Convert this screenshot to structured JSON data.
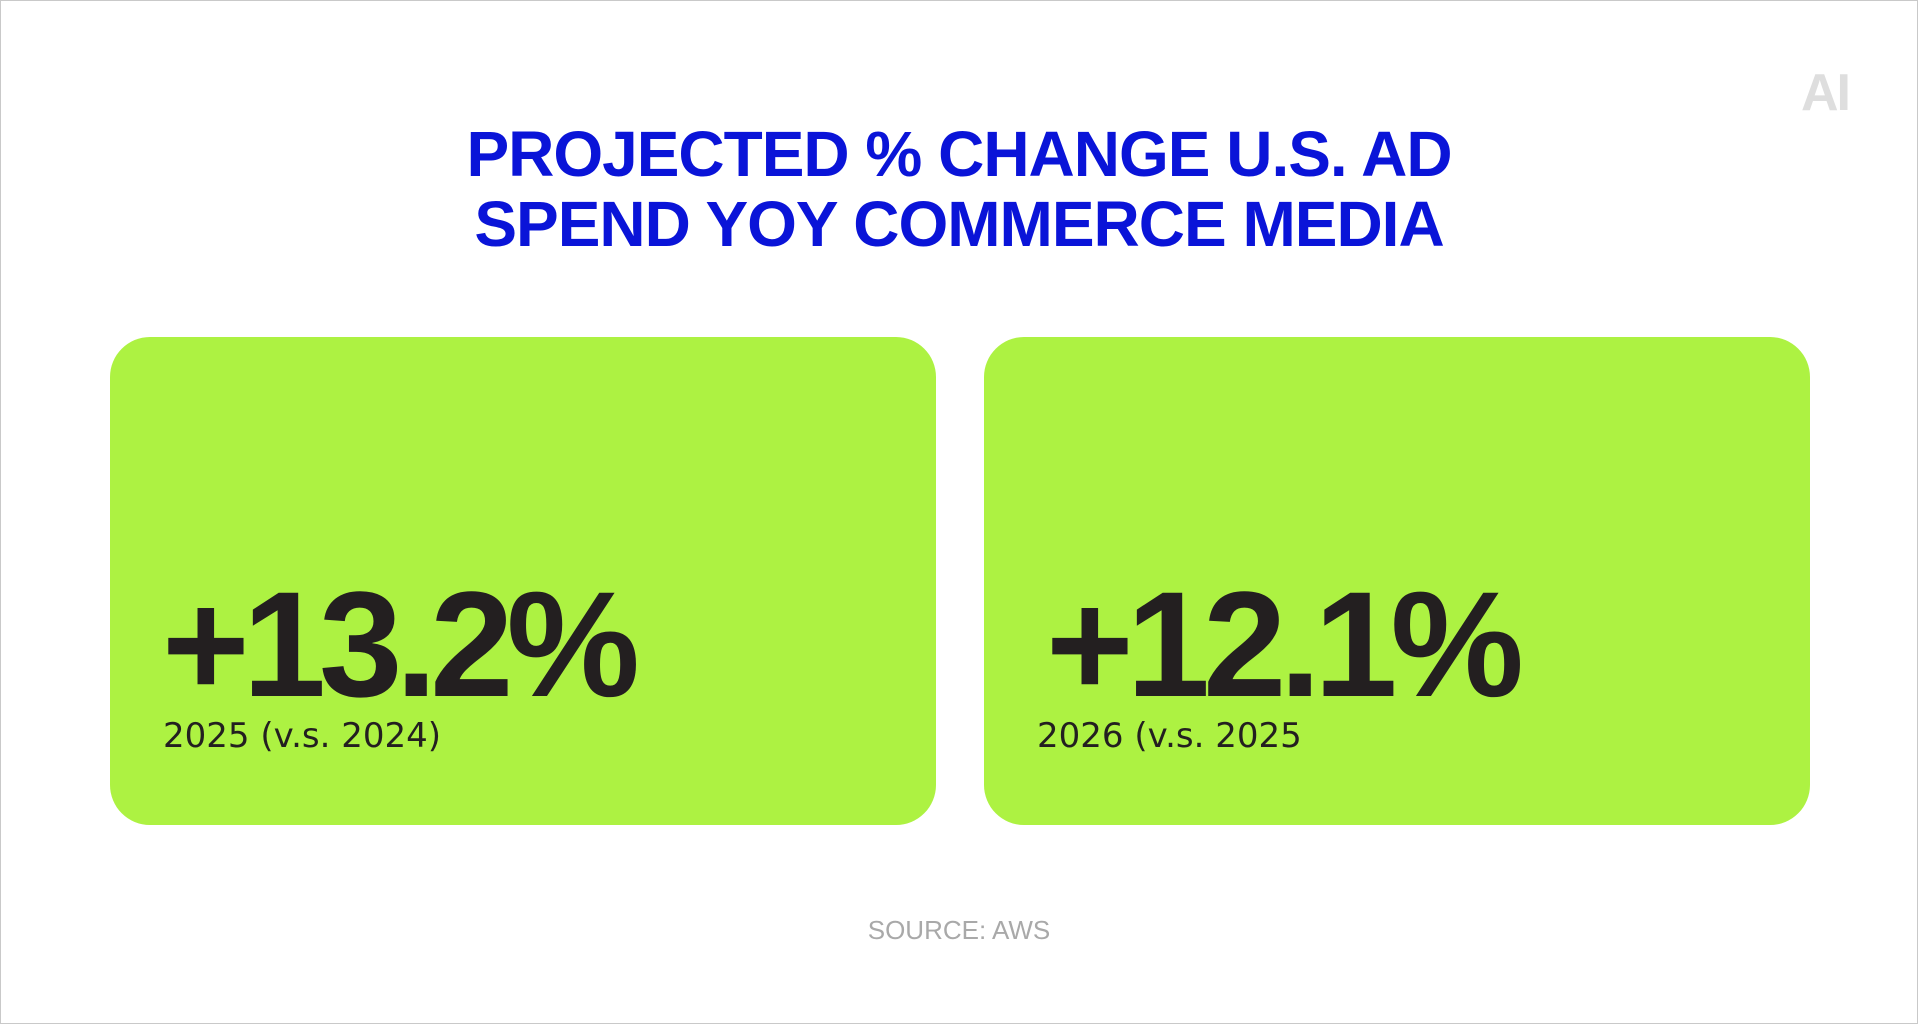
{
  "logo": {
    "text": "AI"
  },
  "title": {
    "lines": [
      "PROJECTED % CHANGE U.S. AD",
      "SPEND YOY COMMERCE MEDIA"
    ]
  },
  "cards": [
    {
      "value": "+13.2%",
      "caption": "2025 (v.s. 2024)"
    },
    {
      "value": "+12.1%",
      "caption": "2026 (v.s. 2025"
    }
  ],
  "source": {
    "text": "SOURCE: AWS"
  },
  "colors": {
    "title": "#0a14d8",
    "card_background": "#adf242",
    "value_text": "#231f20",
    "source_text": "#a9a9a9",
    "logo": "#dedede"
  }
}
